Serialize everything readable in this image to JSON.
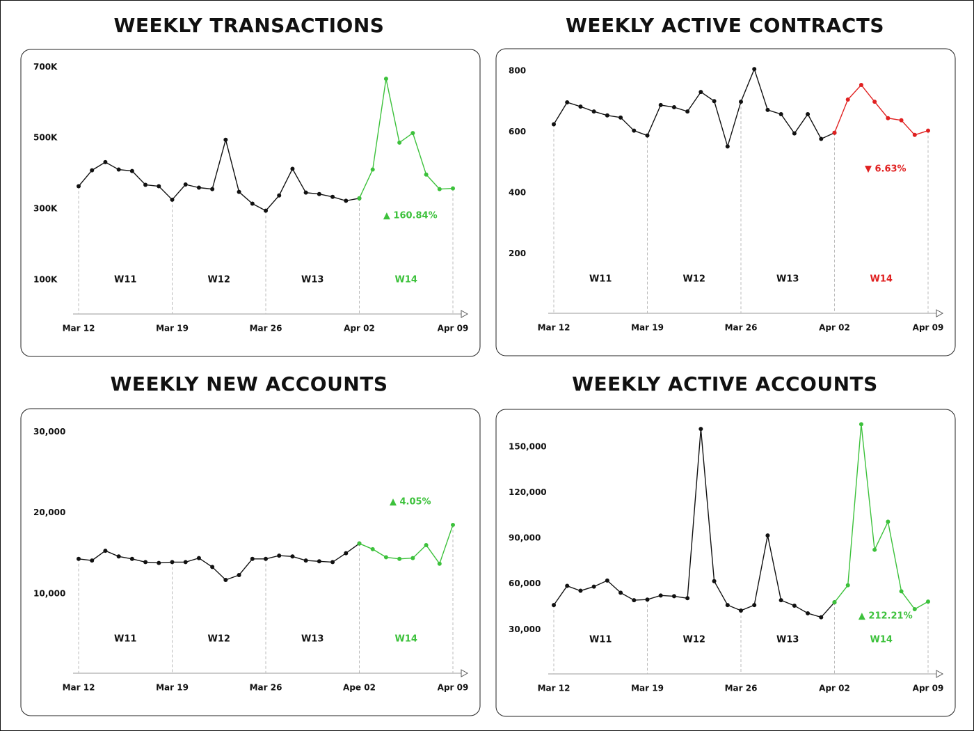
{
  "chart_data": [
    {
      "type": "line",
      "title": "WEEKLY TRANSACTIONS",
      "categories": [
        "Mar 12",
        null,
        null,
        null,
        null,
        null,
        null,
        "Mar 19",
        null,
        null,
        null,
        null,
        null,
        null,
        "Mar 26",
        null,
        null,
        null,
        null,
        null,
        null,
        "Apr 02",
        null,
        null,
        null,
        null,
        null,
        null,
        "Apr 09"
      ],
      "series": [
        {
          "color": "#111111",
          "values": [
            364000,
            409000,
            432000,
            411000,
            407000,
            368000,
            364000,
            326000,
            369000,
            360000,
            356000,
            495000,
            348000,
            315000,
            295000,
            338000,
            413000,
            346000,
            342000,
            334000,
            323000,
            330000,
            null,
            null,
            null,
            null,
            null,
            null,
            null
          ]
        },
        {
          "color": "#3cc13b",
          "values": [
            null,
            null,
            null,
            null,
            null,
            null,
            null,
            null,
            null,
            null,
            null,
            null,
            null,
            null,
            null,
            null,
            null,
            null,
            null,
            null,
            null,
            330000,
            411000,
            667000,
            487000,
            514000,
            397000,
            356000,
            358000
          ]
        }
      ],
      "ylim": [
        0,
        730000
      ],
      "yticks": [
        {
          "value": 100000,
          "label": "100K"
        },
        {
          "value": 300000,
          "label": "300K"
        },
        {
          "value": 500000,
          "label": "500K"
        },
        {
          "value": 700000,
          "label": "700K"
        }
      ],
      "weeks": [
        "W11",
        "W12",
        "W13",
        "W14"
      ],
      "annotation": "▲ 160.84%"
    },
    {
      "type": "line",
      "title": "WEEKLY ACTIVE CONTRACTS",
      "categories": [
        "Mar 12",
        null,
        null,
        null,
        null,
        null,
        null,
        "Mar 19",
        null,
        null,
        null,
        null,
        null,
        null,
        "Mar 26",
        null,
        null,
        null,
        null,
        null,
        null,
        "Apr 02",
        null,
        null,
        null,
        null,
        null,
        null,
        "Apr 09"
      ],
      "series": [
        {
          "color": "#111111",
          "values": [
            625,
            697,
            683,
            667,
            654,
            647,
            604,
            588,
            688,
            681,
            667,
            731,
            701,
            552,
            699,
            806,
            672,
            658,
            595,
            658,
            577,
            597,
            null,
            null,
            null,
            null,
            null,
            null,
            null
          ]
        },
        {
          "color": "#e02020",
          "values": [
            null,
            null,
            null,
            null,
            null,
            null,
            null,
            null,
            null,
            null,
            null,
            null,
            null,
            null,
            null,
            null,
            null,
            null,
            null,
            null,
            null,
            597,
            706,
            754,
            699,
            645,
            638,
            590,
            604
          ]
        }
      ],
      "ylim": [
        0,
        850
      ],
      "yticks": [
        200,
        400,
        600,
        800
      ],
      "weeks": [
        "W11",
        "W12",
        "W13",
        "W14"
      ],
      "annotation": "▼ 6.63%"
    },
    {
      "type": "line",
      "title": "WEEKLY NEW ACCOUNTS",
      "categories": [
        "Mar 12",
        null,
        null,
        null,
        null,
        null,
        null,
        "Mar 19",
        null,
        null,
        null,
        null,
        null,
        null,
        "Mar 26",
        null,
        null,
        null,
        null,
        null,
        null,
        "Ape 02",
        null,
        null,
        null,
        null,
        null,
        null,
        "Apr 09"
      ],
      "series": [
        {
          "color": "#111111",
          "values": [
            14300,
            14100,
            15300,
            14600,
            14300,
            13900,
            13800,
            13900,
            13900,
            14400,
            13300,
            11700,
            12300,
            14300,
            14300,
            14700,
            14600,
            14100,
            14000,
            13900,
            15000,
            16200,
            null,
            null,
            null,
            null,
            null,
            null,
            null
          ]
        },
        {
          "color": "#3cc13b",
          "values": [
            null,
            null,
            null,
            null,
            null,
            null,
            null,
            null,
            null,
            null,
            null,
            null,
            null,
            null,
            null,
            null,
            null,
            null,
            null,
            null,
            null,
            16200,
            15500,
            14500,
            14300,
            14400,
            16000,
            13700,
            18500
          ]
        }
      ],
      "ylim": [
        0,
        32000
      ],
      "yticks": [
        {
          "value": 10000,
          "label": "10,000"
        },
        {
          "value": 20000,
          "label": "20,000"
        },
        {
          "value": 30000,
          "label": "30,000"
        }
      ],
      "weeks": [
        "W11",
        "W12",
        "W13",
        "W14"
      ],
      "annotation": "▲ 4.05%"
    },
    {
      "type": "line",
      "title": "WEEKLY ACTIVE ACCOUNTS",
      "categories": [
        "Mar 12",
        null,
        null,
        null,
        null,
        null,
        null,
        "Mar 19",
        null,
        null,
        null,
        null,
        null,
        null,
        "Mar 26",
        null,
        null,
        null,
        null,
        null,
        null,
        "Apr 02",
        null,
        null,
        null,
        null,
        null,
        null,
        "Apr 09"
      ],
      "series": [
        {
          "color": "#111111",
          "values": [
            46100,
            58700,
            55500,
            58200,
            62200,
            54200,
            49300,
            49700,
            52400,
            51900,
            50600,
            161700,
            61800,
            46100,
            42500,
            46100,
            91800,
            49300,
            45700,
            40700,
            38100,
            47900,
            null,
            null,
            null,
            null,
            null,
            null,
            null
          ]
        },
        {
          "color": "#3cc13b",
          "values": [
            null,
            null,
            null,
            null,
            null,
            null,
            null,
            null,
            null,
            null,
            null,
            null,
            null,
            null,
            null,
            null,
            null,
            null,
            null,
            null,
            null,
            47900,
            59100,
            164800,
            82400,
            100800,
            55100,
            43400,
            48400
          ]
        }
      ],
      "ylim": [
        0,
        170000
      ],
      "yticks": [
        {
          "value": 30000,
          "label": "30,000"
        },
        {
          "value": 60000,
          "label": "60,000"
        },
        {
          "value": 90000,
          "label": "90,000"
        },
        {
          "value": 120000,
          "label": "120,000"
        },
        {
          "value": 150000,
          "label": "150,000"
        }
      ],
      "weeks": [
        "W11",
        "W12",
        "W13",
        "W14"
      ],
      "annotation": "▲ 212.21%"
    }
  ]
}
